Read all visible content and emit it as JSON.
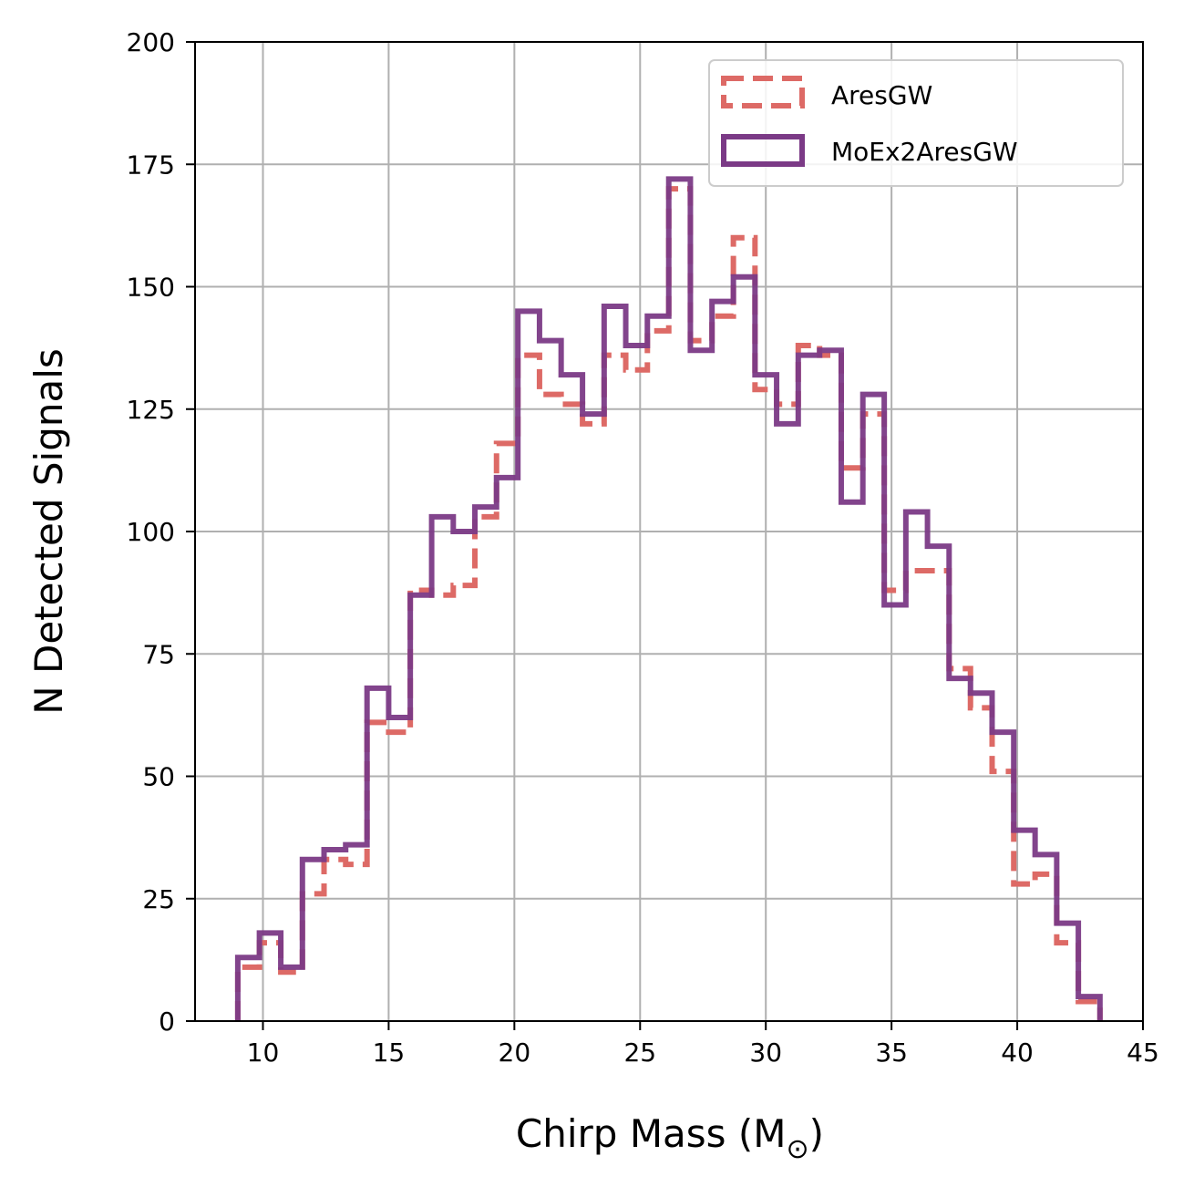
{
  "chart_data": {
    "type": "histogram",
    "xlabel": "Chirp Mass (M",
    "xlabel_suffix": ")",
    "xlabel_symbol": "⊙",
    "ylabel": "N Detected Signals",
    "xlim": [
      7.3,
      45
    ],
    "ylim": [
      0,
      200
    ],
    "xticks": [
      10,
      15,
      20,
      25,
      30,
      35,
      40,
      45
    ],
    "yticks": [
      0,
      25,
      50,
      75,
      100,
      125,
      150,
      175,
      200
    ],
    "grid": true,
    "legend_position": "top-right",
    "bin_edges": [
      9.0,
      9.86,
      10.71,
      11.57,
      12.43,
      13.29,
      14.14,
      15.0,
      15.86,
      16.71,
      17.57,
      18.43,
      19.29,
      20.14,
      21.0,
      21.86,
      22.71,
      23.57,
      24.43,
      25.29,
      26.14,
      27.0,
      27.86,
      28.71,
      29.57,
      30.43,
      31.29,
      32.14,
      33.0,
      33.86,
      34.71,
      35.57,
      36.43,
      37.29,
      38.14,
      39.0,
      39.86,
      40.71,
      41.57,
      42.43,
      43.29
    ],
    "series": [
      {
        "name": "AresGW",
        "style": "dashed",
        "color": "#dd6a66",
        "values": [
          11,
          16,
          10,
          26,
          33,
          32,
          61,
          59,
          88,
          87,
          89,
          103,
          118,
          136,
          128,
          126,
          122,
          136,
          133,
          141,
          170,
          139,
          144,
          160,
          129,
          126,
          138,
          136,
          113,
          124,
          88,
          92,
          92,
          72,
          64,
          51,
          28,
          30,
          16,
          4
        ]
      },
      {
        "name": "MoEx2AresGW",
        "style": "solid",
        "color": "#7b3a86",
        "values": [
          13,
          18,
          11,
          33,
          35,
          36,
          68,
          62,
          87,
          103,
          100,
          105,
          111,
          145,
          139,
          132,
          124,
          146,
          138,
          144,
          172,
          137,
          147,
          152,
          132,
          122,
          136,
          137,
          106,
          128,
          85,
          104,
          97,
          70,
          67,
          59,
          39,
          34,
          20,
          5
        ]
      }
    ]
  }
}
